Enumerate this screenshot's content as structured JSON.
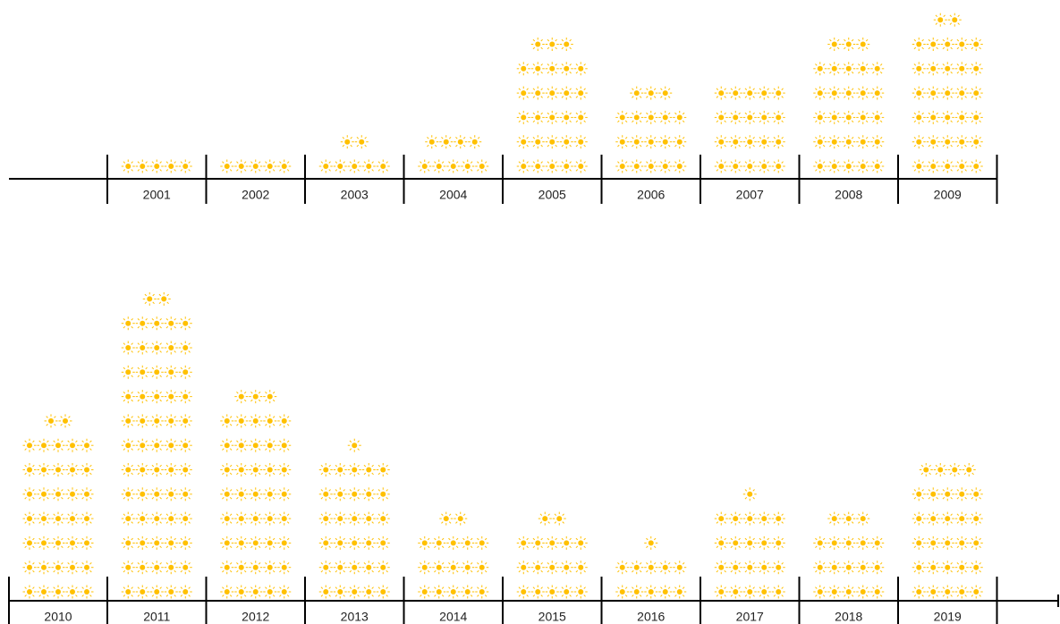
{
  "chart_data": {
    "type": "pictogram",
    "color": "#ffc000",
    "categories": [
      "2001",
      "2002",
      "2003",
      "2004",
      "2005",
      "2006",
      "2007",
      "2008",
      "2009",
      "2010",
      "2011",
      "2012",
      "2013",
      "2014",
      "2015",
      "2016",
      "2017",
      "2018",
      "2019"
    ],
    "values": [
      5,
      5,
      7,
      9,
      28,
      18,
      20,
      28,
      32,
      37,
      62,
      43,
      31,
      17,
      17,
      11,
      21,
      18,
      29
    ]
  }
}
